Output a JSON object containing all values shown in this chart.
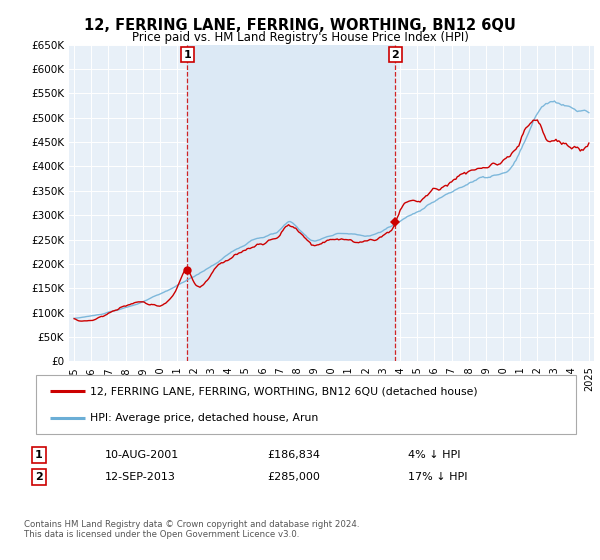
{
  "title": "12, FERRING LANE, FERRING, WORTHING, BN12 6QU",
  "subtitle": "Price paid vs. HM Land Registry's House Price Index (HPI)",
  "legend_line1": "12, FERRING LANE, FERRING, WORTHING, BN12 6QU (detached house)",
  "legend_line2": "HPI: Average price, detached house, Arun",
  "annotation1_label": "1",
  "annotation1_date": "10-AUG-2001",
  "annotation1_price": "£186,834",
  "annotation1_hpi": "4% ↓ HPI",
  "annotation2_label": "2",
  "annotation2_date": "12-SEP-2013",
  "annotation2_price": "£285,000",
  "annotation2_hpi": "17% ↓ HPI",
  "footnote": "Contains HM Land Registry data © Crown copyright and database right 2024.\nThis data is licensed under the Open Government Licence v3.0.",
  "sale1_year": 2001.6,
  "sale2_year": 2013.72,
  "sale1_price": 186834,
  "sale2_price": 285000,
  "property_color": "#cc0000",
  "hpi_color": "#6baed6",
  "shade_color": "#dce9f5",
  "vline_color": "#cc0000",
  "background_color": "#e8f0f8",
  "ylim_min": 0,
  "ylim_max": 650000,
  "xlim_min": 1994.7,
  "xlim_max": 2025.3
}
